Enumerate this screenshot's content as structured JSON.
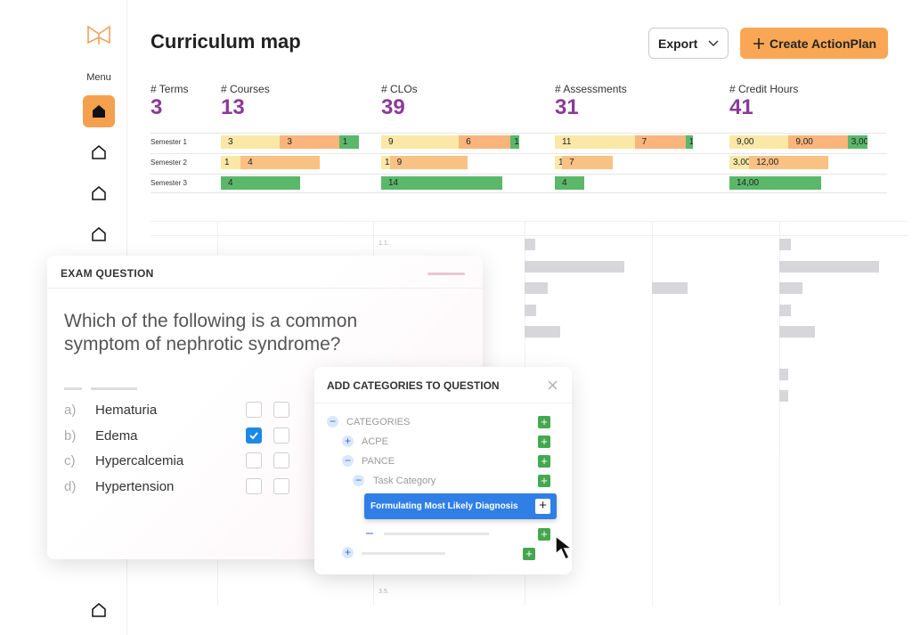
{
  "sidebar": {
    "menu": "Menu"
  },
  "header": {
    "title": "Curriculum map",
    "export": "Export",
    "create": "Create ActionPlan"
  },
  "stats": [
    {
      "label": "# Terms",
      "value": 3
    },
    {
      "label": "# Courses",
      "value": 13
    },
    {
      "label": "# CLOs",
      "value": 39
    },
    {
      "label": "# Assessments",
      "value": 31
    },
    {
      "label": "# Credit Hours",
      "value": 41
    }
  ],
  "breakdown": {
    "semesters": [
      "Semester 1",
      "Semester 2",
      "Semester 3"
    ],
    "segment_colors": [
      [
        "#fbe8a6",
        "#f9b57c",
        "#5bb86b"
      ],
      [
        "#fbe8a6",
        "#f9c184"
      ],
      [
        "#5bb86b"
      ]
    ],
    "columns": [
      {
        "values": [
          [
            3,
            3,
            1
          ],
          [
            1,
            4
          ],
          [
            4
          ]
        ]
      },
      {
        "values": [
          [
            9,
            6,
            1
          ],
          [
            1,
            9
          ],
          [
            14
          ]
        ]
      },
      {
        "values": [
          [
            11,
            7,
            1
          ],
          [
            1,
            7
          ],
          [
            4
          ]
        ]
      },
      {
        "values": [
          [
            9,
            9,
            3
          ],
          [
            3,
            12
          ],
          [
            14
          ]
        ],
        "value_labels": [
          [
            "9,00",
            "9,00",
            "3,00"
          ],
          [
            "3,00",
            "12,00"
          ],
          [
            "14,00"
          ]
        ]
      }
    ]
  },
  "background_table": {
    "row_labels": [
      "1.1.",
      "3.5."
    ]
  },
  "exam": {
    "title": "EXAM QUESTION",
    "question": "Which of the following is a common symptom of nephrotic syndrome?",
    "options": [
      {
        "letter": "a)",
        "text": "Hematuria",
        "checked": false
      },
      {
        "letter": "b)",
        "text": "Edema",
        "checked": true
      },
      {
        "letter": "c)",
        "text": "Hypercalcemia",
        "checked": false
      },
      {
        "letter": "d)",
        "text": "Hypertension",
        "checked": false
      }
    ]
  },
  "categories_dialog": {
    "title": "ADD CATEGORIES TO QUESTION",
    "tree": [
      "CATEGORIES",
      "ACPE",
      "PANCE",
      "Task Category"
    ],
    "selected": "Formulating Most Likely Diagnosis"
  }
}
